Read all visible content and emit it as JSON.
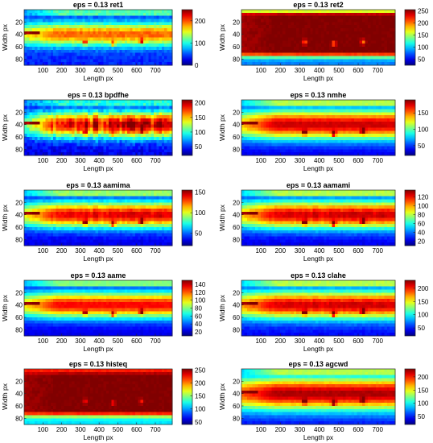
{
  "chart_data": [
    {
      "type": "heatmap",
      "title": "eps = 0.13 ret1",
      "xlabel": "Length px",
      "ylabel": "Width px",
      "xticks": [
        100,
        200,
        300,
        400,
        500,
        600,
        700
      ],
      "yticks": [
        20,
        40,
        60,
        80
      ],
      "xlim": [
        0,
        790
      ],
      "ylim": [
        0,
        90
      ],
      "colorbar": {
        "ticks": [
          0,
          100,
          200
        ],
        "range": [
          0,
          250
        ]
      },
      "profile": "ret1"
    },
    {
      "type": "heatmap",
      "title": "eps = 0.13 ret2",
      "xlabel": "Length px",
      "ylabel": "Width px",
      "xticks": [
        100,
        200,
        300,
        400,
        500,
        600,
        700
      ],
      "yticks": [
        20,
        40,
        60,
        80
      ],
      "xlim": [
        0,
        790
      ],
      "ylim": [
        0,
        90
      ],
      "colorbar": {
        "ticks": [
          50,
          100,
          150,
          200,
          250
        ],
        "range": [
          25,
          255
        ]
      },
      "profile": "ret2"
    },
    {
      "type": "heatmap",
      "title": "eps = 0.13 bpdfhe",
      "xlabel": "Length px",
      "ylabel": "Width px",
      "xticks": [
        100,
        200,
        300,
        400,
        500,
        600,
        700
      ],
      "yticks": [
        20,
        40,
        60,
        80
      ],
      "xlim": [
        0,
        790
      ],
      "ylim": [
        0,
        90
      ],
      "colorbar": {
        "ticks": [
          50,
          100,
          150,
          200
        ],
        "range": [
          20,
          210
        ]
      },
      "profile": "bpdfhe"
    },
    {
      "type": "heatmap",
      "title": "eps = 0.13 nmhe",
      "xlabel": "Length px",
      "ylabel": "Width px",
      "xticks": [
        100,
        200,
        300,
        400,
        500,
        600,
        700
      ],
      "yticks": [
        20,
        40,
        60,
        80
      ],
      "xlim": [
        0,
        790
      ],
      "ylim": [
        0,
        90
      ],
      "colorbar": {
        "ticks": [
          50,
          100,
          150
        ],
        "range": [
          20,
          190
        ]
      },
      "profile": "nmhe"
    },
    {
      "type": "heatmap",
      "title": "eps = 0.13 aamima",
      "xlabel": "Length px",
      "ylabel": "Width px",
      "xticks": [
        100,
        200,
        300,
        400,
        500,
        600,
        700
      ],
      "yticks": [
        20,
        40,
        60,
        80
      ],
      "xlim": [
        0,
        790
      ],
      "ylim": [
        0,
        90
      ],
      "colorbar": {
        "ticks": [
          50,
          100,
          150
        ],
        "range": [
          20,
          155
        ]
      },
      "profile": "aamima"
    },
    {
      "type": "heatmap",
      "title": "eps = 0.13 aamami",
      "xlabel": "Length px",
      "ylabel": "Width px",
      "xticks": [
        100,
        200,
        300,
        400,
        500,
        600,
        700
      ],
      "yticks": [
        20,
        40,
        60,
        80
      ],
      "xlim": [
        0,
        790
      ],
      "ylim": [
        0,
        90
      ],
      "colorbar": {
        "ticks": [
          20,
          40,
          60,
          80,
          100,
          120
        ],
        "range": [
          10,
          135
        ]
      },
      "profile": "aamami"
    },
    {
      "type": "heatmap",
      "title": "eps = 0.13 aame",
      "xlabel": "Length px",
      "ylabel": "Width px",
      "xticks": [
        100,
        200,
        300,
        400,
        500,
        600,
        700
      ],
      "yticks": [
        20,
        40,
        60,
        80
      ],
      "xlim": [
        0,
        790
      ],
      "ylim": [
        0,
        90
      ],
      "colorbar": {
        "ticks": [
          20,
          40,
          60,
          80,
          100,
          120,
          140
        ],
        "range": [
          10,
          150
        ]
      },
      "profile": "aame"
    },
    {
      "type": "heatmap",
      "title": "eps = 0.13 clahe",
      "xlabel": "Length px",
      "ylabel": "Width px",
      "xticks": [
        100,
        200,
        300,
        400,
        500,
        600,
        700
      ],
      "yticks": [
        20,
        40,
        60,
        80
      ],
      "xlim": [
        0,
        790
      ],
      "ylim": [
        0,
        90
      ],
      "colorbar": {
        "ticks": [
          50,
          100,
          150,
          200
        ],
        "range": [
          20,
          230
        ]
      },
      "profile": "clahe"
    },
    {
      "type": "heatmap",
      "title": "eps = 0.13 histeq",
      "xlabel": "Length px",
      "ylabel": "Width px",
      "xticks": [
        100,
        200,
        300,
        400,
        500,
        600,
        700
      ],
      "yticks": [
        20,
        40,
        60,
        80
      ],
      "xlim": [
        0,
        790
      ],
      "ylim": [
        0,
        90
      ],
      "colorbar": {
        "ticks": [
          50,
          100,
          150,
          200,
          250
        ],
        "range": [
          40,
          255
        ]
      },
      "profile": "histeq"
    },
    {
      "type": "heatmap",
      "title": "eps = 0.13 agcwd",
      "xlabel": "Length px",
      "ylabel": "Width px",
      "xticks": [
        100,
        200,
        300,
        400,
        500,
        600,
        700
      ],
      "yticks": [
        20,
        40,
        60,
        80
      ],
      "xlim": [
        0,
        790
      ],
      "ylim": [
        0,
        90
      ],
      "colorbar": {
        "ticks": [
          50,
          100,
          150,
          200
        ],
        "range": [
          20,
          230
        ]
      },
      "profile": "agcwd"
    }
  ]
}
